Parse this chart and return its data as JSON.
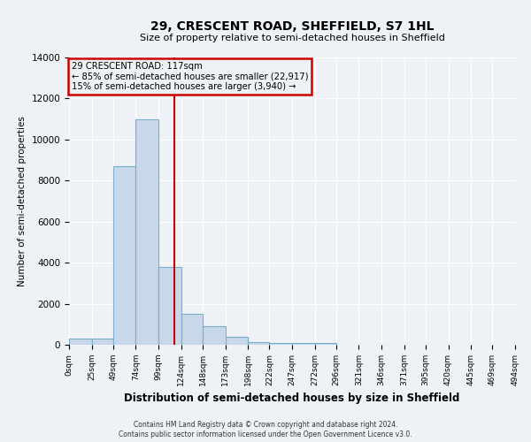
{
  "title": "29, CRESCENT ROAD, SHEFFIELD, S7 1HL",
  "subtitle": "Size of property relative to semi-detached houses in Sheffield",
  "xlabel": "Distribution of semi-detached houses by size in Sheffield",
  "ylabel": "Number of semi-detached properties",
  "bin_edges": [
    0,
    25,
    49,
    74,
    99,
    124,
    148,
    173,
    198,
    222,
    247,
    272,
    296,
    321,
    346,
    371,
    395,
    420,
    445,
    469,
    494
  ],
  "bar_heights": [
    300,
    300,
    8700,
    11000,
    3800,
    1500,
    900,
    400,
    150,
    100,
    100,
    100,
    0,
    0,
    0,
    0,
    0,
    0,
    0,
    0
  ],
  "bar_color": "#c8d8ea",
  "bar_edge_color": "#7aadcc",
  "ylim": [
    0,
    14000
  ],
  "yticks": [
    0,
    2000,
    4000,
    6000,
    8000,
    10000,
    12000,
    14000
  ],
  "property_size": 117,
  "red_line_color": "#cc0000",
  "annotation_box_edge_color": "#cc0000",
  "annotation_line1": "29 CRESCENT ROAD: 117sqm",
  "annotation_line2": "← 85% of semi-detached houses are smaller (22,917)",
  "annotation_line3": "15% of semi-detached houses are larger (3,940) →",
  "footnote1": "Contains HM Land Registry data © Crown copyright and database right 2024.",
  "footnote2": "Contains public sector information licensed under the Open Government Licence v3.0.",
  "background_color": "#eef2f6",
  "grid_color": "#ffffff",
  "tick_labels": [
    "0sqm",
    "25sqm",
    "49sqm",
    "74sqm",
    "99sqm",
    "124sqm",
    "148sqm",
    "173sqm",
    "198sqm",
    "222sqm",
    "247sqm",
    "272sqm",
    "296sqm",
    "321sqm",
    "346sqm",
    "371sqm",
    "395sqm",
    "420sqm",
    "445sqm",
    "469sqm",
    "494sqm"
  ]
}
